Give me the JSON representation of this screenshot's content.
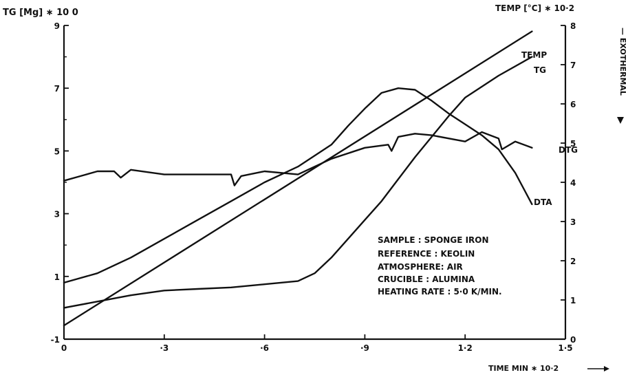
{
  "chart_data": {
    "type": "line",
    "title": "",
    "y_left_label": "TG [Mg] ∗ 10 0",
    "y_right_label": "TEMP [°C] ∗ 10·2",
    "y_right_side_label": "— EXOTHERMAL",
    "x_label": "TIME  MIN  ∗ 10·2",
    "x_ticks": [
      0,
      0.3,
      0.6,
      0.9,
      1.2,
      1.5
    ],
    "x_tick_labels": [
      "0",
      "·3",
      "·6",
      "·9",
      "1·2",
      "1·5"
    ],
    "y_left_ticks": [
      -1,
      1,
      3,
      5,
      7,
      9
    ],
    "y_left_tick_labels": [
      "-1",
      "1",
      "3",
      "5",
      "7",
      "9"
    ],
    "y_right_ticks": [
      0,
      1,
      2,
      3,
      4,
      5,
      6,
      7,
      8
    ],
    "y_right_tick_labels": [
      "0",
      "1",
      "2",
      "3",
      "4",
      "5",
      "6",
      "7",
      "8"
    ],
    "xlim": [
      0,
      1.5
    ],
    "ylim_left": [
      -1,
      9
    ],
    "ylim_right": [
      0,
      8
    ],
    "grid": false,
    "series": [
      {
        "name": "TEMP",
        "axis": "right",
        "x": [
          0,
          1.4
        ],
        "y": [
          0.35,
          7.85
        ]
      },
      {
        "name": "TG",
        "axis": "left",
        "x": [
          0,
          0.1,
          0.2,
          0.3,
          0.4,
          0.5,
          0.6,
          0.7,
          0.75,
          0.8,
          0.85,
          0.9,
          0.95,
          1.0,
          1.05,
          1.1,
          1.15,
          1.2,
          1.3,
          1.4
        ],
        "y": [
          0.0,
          0.2,
          0.4,
          0.55,
          0.6,
          0.65,
          0.75,
          0.85,
          1.1,
          1.6,
          2.2,
          2.8,
          3.4,
          4.1,
          4.8,
          5.45,
          6.1,
          6.7,
          7.4,
          8.0
        ]
      },
      {
        "name": "DTA",
        "axis": "left",
        "x": [
          0,
          0.1,
          0.2,
          0.3,
          0.4,
          0.5,
          0.6,
          0.7,
          0.8,
          0.85,
          0.9,
          0.95,
          1.0,
          1.05,
          1.1,
          1.15,
          1.2,
          1.25,
          1.3,
          1.35,
          1.4
        ],
        "y": [
          0.8,
          1.1,
          1.6,
          2.2,
          2.8,
          3.4,
          4.0,
          4.5,
          5.2,
          5.8,
          6.35,
          6.85,
          7.0,
          6.95,
          6.6,
          6.2,
          5.85,
          5.5,
          5.05,
          4.3,
          3.3
        ]
      },
      {
        "name": "DTG",
        "axis": "left",
        "x": [
          0,
          0.05,
          0.1,
          0.15,
          0.17,
          0.2,
          0.3,
          0.4,
          0.5,
          0.51,
          0.53,
          0.6,
          0.7,
          0.8,
          0.9,
          0.97,
          0.98,
          1.0,
          1.05,
          1.1,
          1.2,
          1.25,
          1.3,
          1.31,
          1.35,
          1.4
        ],
        "y": [
          4.05,
          4.2,
          4.35,
          4.35,
          4.15,
          4.4,
          4.25,
          4.25,
          4.25,
          3.9,
          4.2,
          4.35,
          4.25,
          4.75,
          5.1,
          5.2,
          5.0,
          5.45,
          5.55,
          5.5,
          5.3,
          5.6,
          5.4,
          5.05,
          5.3,
          5.1
        ]
      }
    ],
    "annotations": [
      "SAMPLE : SPONGE  IRON",
      "REFERENCE :  KEOLIN",
      "ATMOSPHERE: AIR",
      "CRUCIBLE :   ALUMINA",
      "HEATING RATE :  5·0 K/MIN."
    ]
  }
}
